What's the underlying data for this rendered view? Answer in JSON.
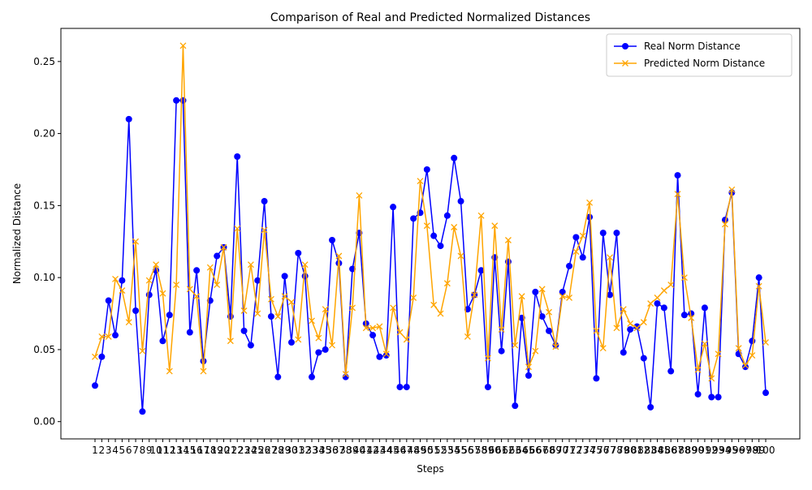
{
  "chart_data": {
    "type": "line",
    "title": "Comparison of Real and Predicted Normalized Distances",
    "xlabel": "Steps",
    "ylabel": "Normalized Distance",
    "x_range": [
      1,
      100
    ],
    "ylim": [
      -0.012,
      0.273
    ],
    "y_ticks": [
      "0.00",
      "0.05",
      "0.10",
      "0.15",
      "0.20",
      "0.25"
    ],
    "y_tick_values": [
      0,
      0.05,
      0.1,
      0.15,
      0.2,
      0.25
    ],
    "grid": false,
    "legend_position": "top-right",
    "series": [
      {
        "name": "Real Norm Distance",
        "color": "#0000ff",
        "marker": "circle",
        "values": [
          0.025,
          0.045,
          0.084,
          0.06,
          0.098,
          0.21,
          0.077,
          0.007,
          0.088,
          0.105,
          0.056,
          0.074,
          0.223,
          0.223,
          0.062,
          0.105,
          0.042,
          0.084,
          0.115,
          0.121,
          0.073,
          0.184,
          0.063,
          0.053,
          0.098,
          0.153,
          0.073,
          0.031,
          0.101,
          0.055,
          0.117,
          0.101,
          0.031,
          0.048,
          0.05,
          0.126,
          0.11,
          0.031,
          0.106,
          0.131,
          0.068,
          0.06,
          0.045,
          0.046,
          0.149,
          0.024,
          0.024,
          0.141,
          0.145,
          0.175,
          0.129,
          0.122,
          0.143,
          0.183,
          0.153,
          0.078,
          0.088,
          0.105,
          0.024,
          0.114,
          0.049,
          0.111,
          0.011,
          0.072,
          0.032,
          0.09,
          0.073,
          0.063,
          0.053,
          0.09,
          0.108,
          0.128,
          0.114,
          0.142,
          0.03,
          0.131,
          0.088,
          0.131,
          0.048,
          0.064,
          0.066,
          0.044,
          0.01,
          0.082,
          0.079,
          0.035,
          0.171,
          0.074,
          0.075,
          0.019,
          0.079,
          0.017,
          0.017,
          0.14,
          0.159,
          0.047,
          0.038,
          0.056,
          0.1,
          0.02
        ]
      },
      {
        "name": "Predicted Norm Distance",
        "color": "#ffa500",
        "marker": "x",
        "values": [
          0.045,
          0.059,
          0.059,
          0.099,
          0.091,
          0.069,
          0.125,
          0.049,
          0.098,
          0.109,
          0.089,
          0.035,
          0.095,
          0.261,
          0.092,
          0.087,
          0.035,
          0.107,
          0.095,
          0.121,
          0.056,
          0.134,
          0.077,
          0.109,
          0.075,
          0.133,
          0.085,
          0.073,
          0.087,
          0.083,
          0.057,
          0.109,
          0.07,
          0.058,
          0.078,
          0.053,
          0.115,
          0.033,
          0.079,
          0.157,
          0.065,
          0.065,
          0.066,
          0.047,
          0.079,
          0.062,
          0.057,
          0.086,
          0.167,
          0.136,
          0.081,
          0.075,
          0.096,
          0.135,
          0.115,
          0.059,
          0.088,
          0.143,
          0.044,
          0.136,
          0.064,
          0.126,
          0.053,
          0.087,
          0.038,
          0.049,
          0.092,
          0.076,
          0.052,
          0.087,
          0.086,
          0.118,
          0.129,
          0.152,
          0.063,
          0.051,
          0.114,
          0.065,
          0.078,
          0.068,
          0.065,
          0.069,
          0.082,
          0.086,
          0.091,
          0.095,
          0.158,
          0.1,
          0.072,
          0.036,
          0.054,
          0.03,
          0.047,
          0.137,
          0.161,
          0.051,
          0.039,
          0.046,
          0.094,
          0.055
        ]
      }
    ]
  }
}
